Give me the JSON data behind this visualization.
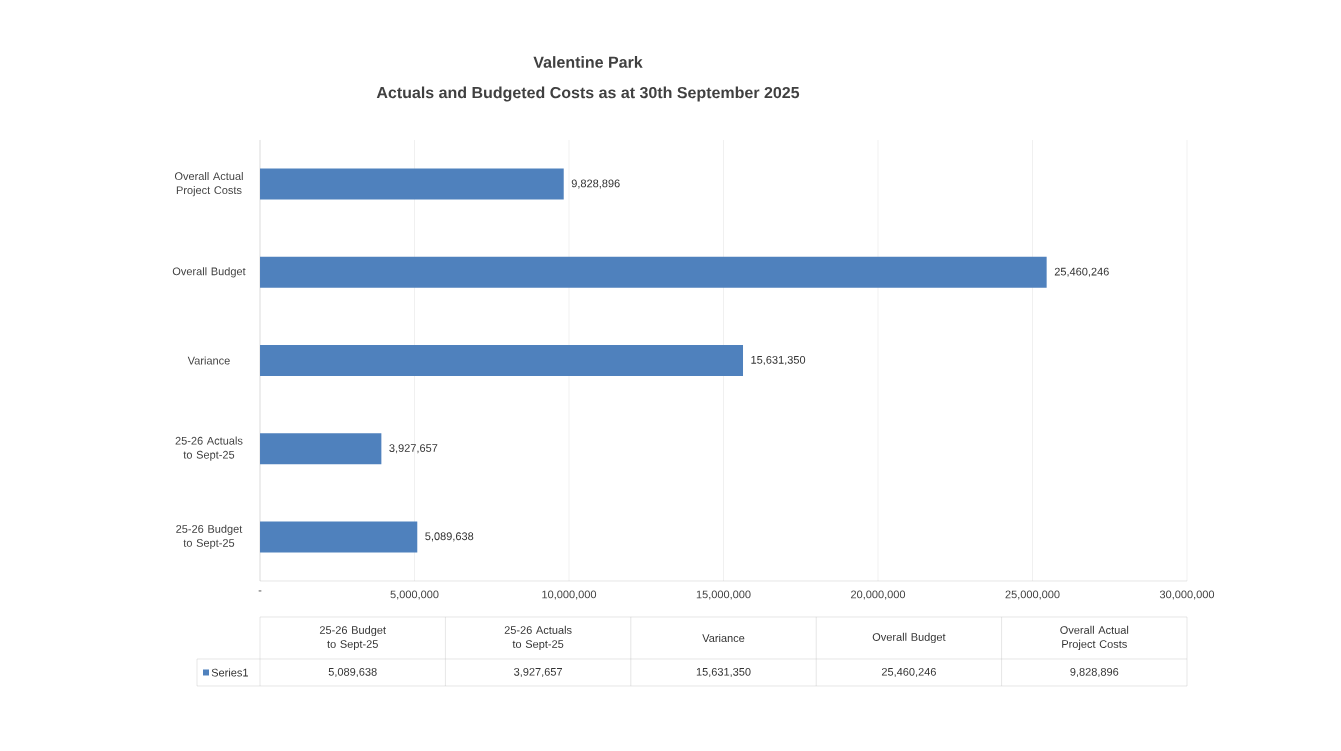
{
  "chart_data": {
    "type": "bar",
    "orientation": "horizontal",
    "title": "Valentine Park",
    "subtitle": "Actuals and Budgeted Costs as at 30th September 2025",
    "categories": [
      "Overall Actual Project Costs",
      "Overall Budget",
      "Variance",
      "25-26 Actuals to Sept-25",
      "25-26 Budget to Sept-25"
    ],
    "series": [
      {
        "name": "Series1",
        "color": "#4f81bd",
        "values": [
          9828896,
          25460246,
          15631350,
          3927657,
          5089638
        ],
        "value_labels": [
          "9,828,896",
          "25,460,246",
          "15,631,350",
          "3,927,657",
          "5,089,638"
        ]
      }
    ],
    "xlim": [
      0,
      30000000
    ],
    "xticks": [
      {
        "value": 0,
        "label": "-"
      },
      {
        "value": 5000000,
        "label": "5,000,000"
      },
      {
        "value": 10000000,
        "label": "10,000,000"
      },
      {
        "value": 15000000,
        "label": "15,000,000"
      },
      {
        "value": 20000000,
        "label": "20,000,000"
      },
      {
        "value": 25000000,
        "label": "25,000,000"
      },
      {
        "value": 30000000,
        "label": "30,000,000"
      }
    ],
    "grid": "x",
    "legend": "bottom"
  }
}
